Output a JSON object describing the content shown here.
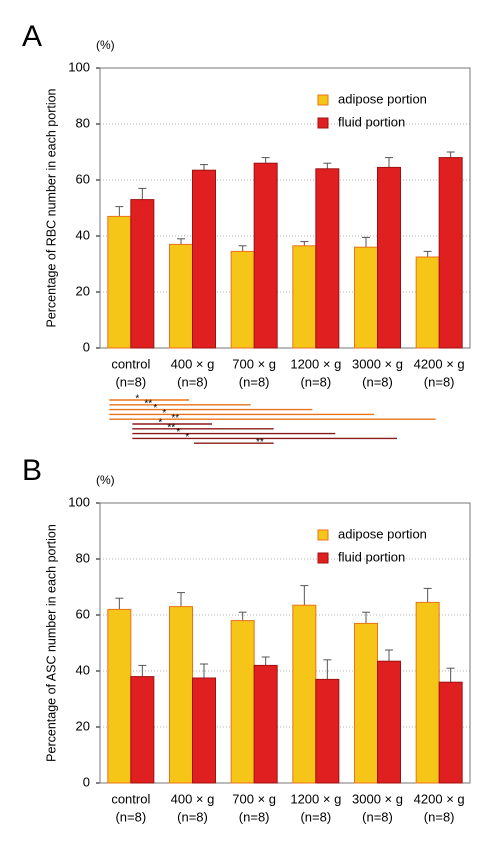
{
  "chart_data": [
    {
      "type": "bar",
      "panel": "A",
      "unit_label": "(%)",
      "y_label": "Percentage of RBC number in each portion",
      "categories": [
        "control",
        "400 × g",
        "700 × g",
        "1200 × g",
        "3000 × g",
        "4200 × g"
      ],
      "category_notes": [
        "(n=8)",
        "(n=8)",
        "(n=8)",
        "(n=8)",
        "(n=8)",
        "(n=8)"
      ],
      "series": [
        {
          "name": "adipose portion",
          "color": "#f5c518",
          "edge_color": "#e8731a",
          "values": [
            47,
            37,
            34.5,
            36.5,
            36,
            32.5
          ],
          "errors": [
            3.5,
            2,
            2,
            1.5,
            3.5,
            2
          ]
        },
        {
          "name": "fluid portion",
          "color": "#e02020",
          "edge_color": "#a01010",
          "values": [
            53,
            63.5,
            66,
            64,
            64.5,
            68
          ],
          "errors": [
            4,
            2,
            2,
            2,
            3.5,
            2
          ]
        }
      ],
      "ylim": [
        0,
        100
      ],
      "yticks": [
        0,
        20,
        40,
        60,
        80,
        100
      ],
      "grid": true,
      "legend": "upper right",
      "significance": [
        {
          "series": 0,
          "color": "#e8731a",
          "comparisons": [
            {
              "from": 0,
              "to": 1,
              "label": "*"
            },
            {
              "from": 0,
              "to": 2,
              "label": "**"
            },
            {
              "from": 0,
              "to": 3,
              "label": "*"
            },
            {
              "from": 0,
              "to": 4,
              "label": "*"
            },
            {
              "from": 0,
              "to": 5,
              "label": "**"
            }
          ]
        },
        {
          "series": 1,
          "color": "#8b1a1a",
          "comparisons": [
            {
              "from": 0,
              "to": 1,
              "label": "*"
            },
            {
              "from": 0,
              "to": 2,
              "label": "**"
            },
            {
              "from": 0,
              "to": 3,
              "label": "*"
            },
            {
              "from": 0,
              "to": 4,
              "label": "*"
            },
            {
              "from": 1,
              "to": 2,
              "label": "**"
            }
          ]
        }
      ]
    },
    {
      "type": "bar",
      "panel": "B",
      "unit_label": "(%)",
      "y_label": "Percentage of ASC number in each portion",
      "categories": [
        "control",
        "400 × g",
        "700 × g",
        "1200 × g",
        "3000 × g",
        "4200 × g"
      ],
      "category_notes": [
        "(n=8)",
        "(n=8)",
        "(n=8)",
        "(n=8)",
        "(n=8)",
        "(n=8)"
      ],
      "series": [
        {
          "name": "adipose portion",
          "color": "#f5c518",
          "edge_color": "#e8731a",
          "values": [
            62,
            63,
            58,
            63.5,
            57,
            64.5
          ],
          "errors": [
            4,
            5,
            3,
            7,
            4,
            5
          ]
        },
        {
          "name": "fluid portion",
          "color": "#e02020",
          "edge_color": "#a01010",
          "values": [
            38,
            37.5,
            42,
            37,
            43.5,
            36
          ],
          "errors": [
            4,
            5,
            3,
            7,
            4,
            5
          ]
        }
      ],
      "ylim": [
        0,
        100
      ],
      "yticks": [
        0,
        20,
        40,
        60,
        80,
        100
      ],
      "grid": true,
      "legend": "upper right"
    }
  ]
}
